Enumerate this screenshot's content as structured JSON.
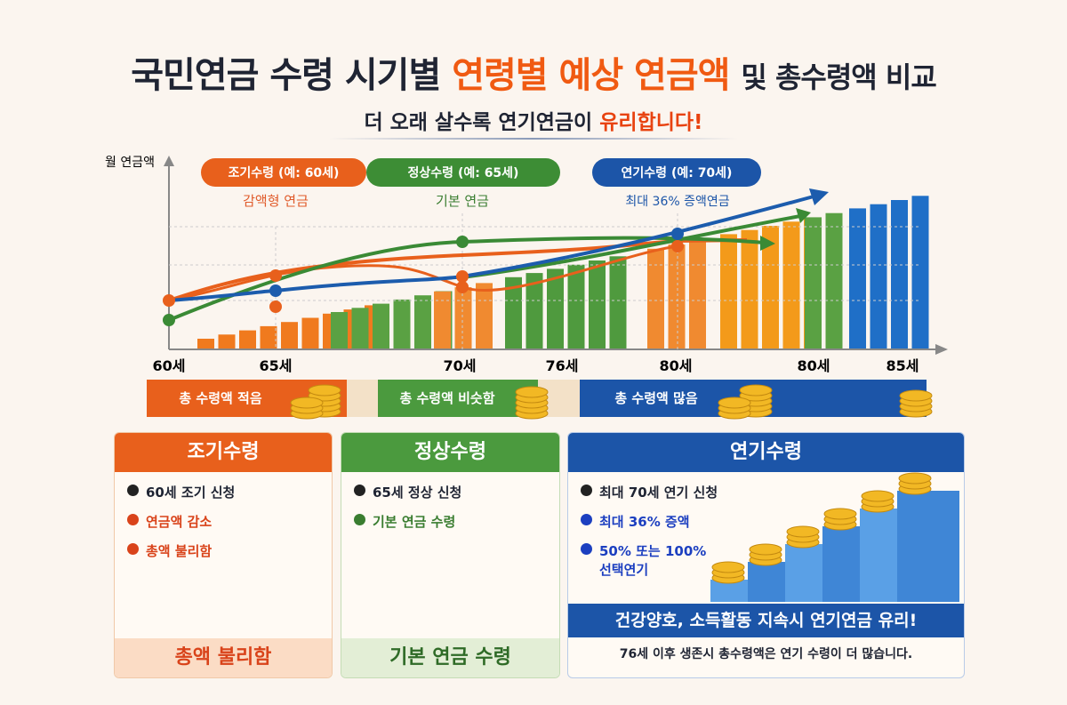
{
  "header": {
    "title_part1": "국민연금 수령 시기별",
    "title_highlight": "연령별 예상 연금액",
    "title_part2": "및 총수령액 비교",
    "subtitle": "더 오래 살수록 연기연금이",
    "subtitle_highlight": "유리합니다!"
  },
  "chart": {
    "y_label": "월 연금액",
    "x_labels": [
      "60세",
      "65세",
      "70세",
      "76세",
      "80세",
      "80세",
      "85세"
    ],
    "badges": [
      {
        "label": "조기수령 (예: 60세)",
        "note": "감액형 연금"
      },
      {
        "label": "정상수령 (예: 65세)",
        "note": "기본 연금"
      },
      {
        "label": "연기수령 (예: 70세)",
        "note": "최대 36% 증액연금"
      }
    ],
    "bands": [
      "총 수령액 적음",
      "총 수령액 비슷함",
      "총 수령액 많음"
    ]
  },
  "cards": [
    {
      "title": "조기수령",
      "items": [
        "60세 조기 신청",
        "연금액 감소",
        "총액 불리함"
      ],
      "footer": "총액 불리함"
    },
    {
      "title": "정상수령",
      "items": [
        "65세 정상 신청",
        "기본 연금 수령"
      ],
      "footer": "기본 연금 수령"
    },
    {
      "title": "연기수령",
      "items": [
        "최대 70세 연기 신청",
        "최대 36% 증액",
        "50% 또는 100% 선택연기"
      ],
      "footer": "건강양호, 소득활동 지속시 연기연금 유리!",
      "note": "76세 이후 생존시 총수령액은 연기 수령이 더 많습니다."
    }
  ]
}
